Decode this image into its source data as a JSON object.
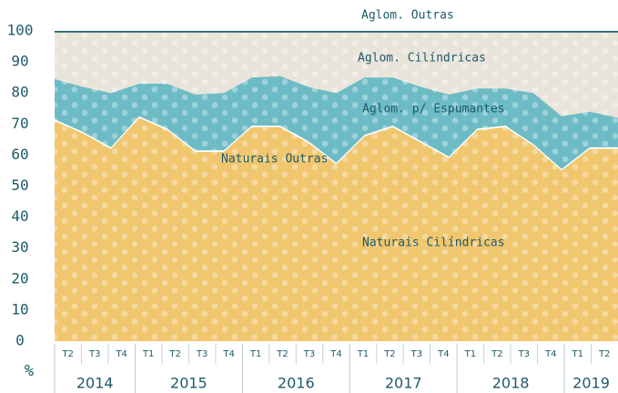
{
  "chart_data": {
    "type": "stacked_area",
    "y_axis_label": "%",
    "categories": [
      "T2",
      "T3",
      "T4",
      "T1",
      "T2",
      "T3",
      "T4",
      "T1",
      "T2",
      "T3",
      "T4",
      "T1",
      "T2",
      "T3",
      "T4",
      "T1",
      "T2",
      "T3",
      "T4",
      "T1",
      "T2"
    ],
    "year_groups": [
      {
        "label": "2014",
        "span": 3
      },
      {
        "label": "2015",
        "span": 4
      },
      {
        "label": "2016",
        "span": 4
      },
      {
        "label": "2017",
        "span": 4
      },
      {
        "label": "2018",
        "span": 4
      },
      {
        "label": "2019",
        "span": 2
      }
    ],
    "series": [
      {
        "name": "Naturais Cilíndricas",
        "color": "#f0c66e",
        "values": [
          71,
          67,
          62,
          72,
          68,
          61,
          61,
          69,
          69,
          64,
          57,
          66,
          69,
          64,
          59,
          68,
          69,
          63,
          55,
          62,
          62
        ]
      },
      {
        "name": "Naturais Outras",
        "color": "#ffffff",
        "values": [
          0.5,
          0.5,
          0.5,
          0.5,
          0.5,
          0.5,
          0.5,
          0.5,
          0.5,
          0.5,
          0.5,
          0.5,
          0.5,
          0.5,
          0.5,
          0.5,
          0.5,
          0.5,
          0.5,
          0.5,
          0.5
        ]
      },
      {
        "name": "Aglom. p/ Espumantes",
        "color": "#6dbcc5",
        "values": [
          13,
          14.5,
          17.5,
          10.5,
          14.5,
          18,
          18.5,
          15.5,
          16,
          17.5,
          22.5,
          18.5,
          15.5,
          17.5,
          20,
          13,
          12,
          16.5,
          17,
          11.5,
          9.5
        ]
      },
      {
        "name": "Aglom. Cilíndricas",
        "color": "#e9e4da",
        "values": [
          15,
          17.5,
          19.5,
          16.5,
          16.5,
          20,
          19.5,
          14.5,
          14,
          17.5,
          19.5,
          14.5,
          14.5,
          17.5,
          20,
          18,
          18,
          19.5,
          27,
          25.5,
          27.5
        ]
      },
      {
        "name": "Aglom. Outras",
        "color": "#1a5e6b",
        "values": [
          0.5,
          0.5,
          0.5,
          0.5,
          0.5,
          0.5,
          0.5,
          0.5,
          0.5,
          0.5,
          0.5,
          0.5,
          0.5,
          0.5,
          0.5,
          0.5,
          0.5,
          0.5,
          0.5,
          0.5,
          0.5
        ]
      }
    ],
    "ylim": [
      0,
      100
    ],
    "yticks": [
      0,
      10,
      20,
      30,
      40,
      50,
      60,
      70,
      80,
      90,
      100
    ]
  }
}
